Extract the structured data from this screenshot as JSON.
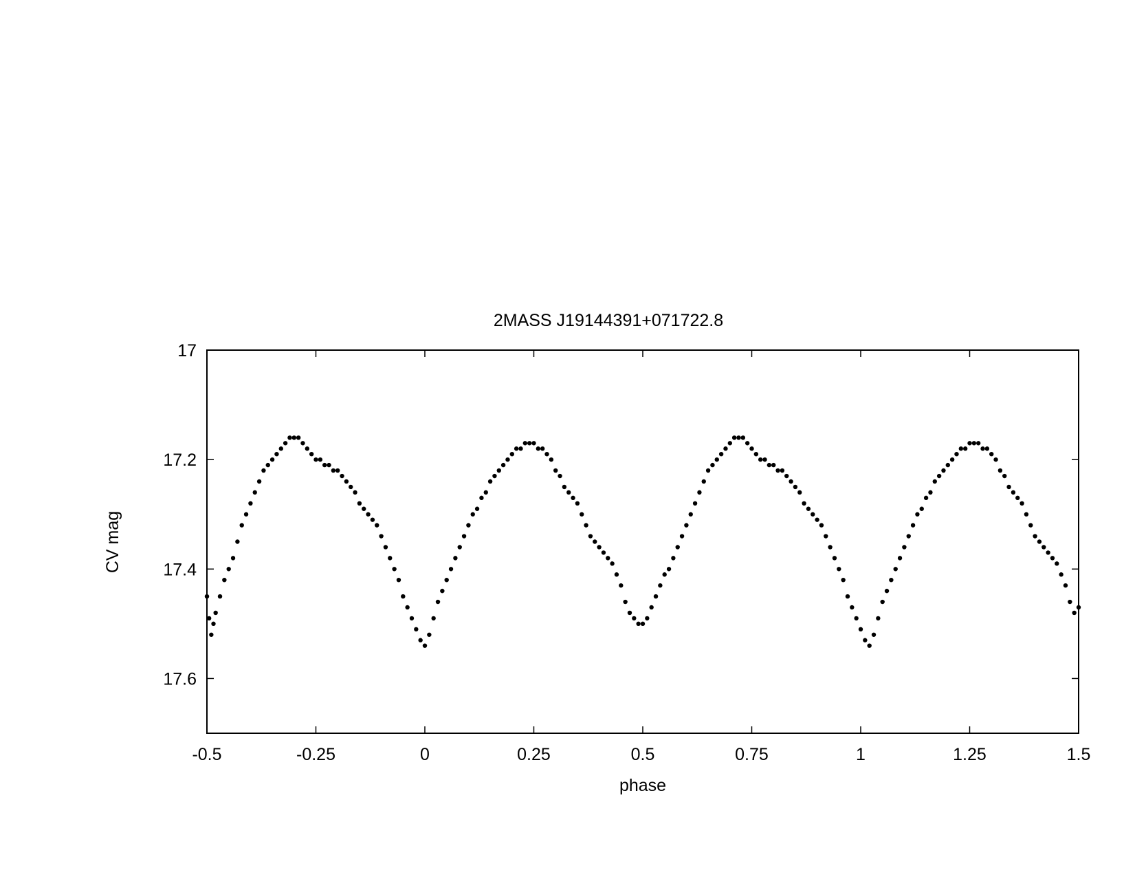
{
  "chart_data": {
    "type": "scatter",
    "title": "2MASS J19144391+071722.8",
    "xlabel": "phase",
    "ylabel": "CV mag",
    "xlim": [
      -0.5,
      1.5
    ],
    "ylim": [
      17.7,
      17.0
    ],
    "y_inverted": true,
    "grid": false,
    "legend": "none",
    "xticks": [
      -0.5,
      -0.25,
      0,
      0.25,
      0.5,
      0.75,
      1,
      1.25,
      1.5
    ],
    "xtick_labels": [
      "-0.5",
      "-0.25",
      "0",
      "0.25",
      "0.5",
      "0.75",
      "1",
      "1.25",
      "1.5"
    ],
    "yticks": [
      17.0,
      17.2,
      17.4,
      17.6
    ],
    "ytick_labels": [
      "17",
      "17.2",
      "17.4",
      "17.6"
    ],
    "marker_color": "#000000",
    "series": [
      {
        "x": [
          -0.5,
          -0.495,
          -0.49,
          -0.485,
          -0.48,
          -0.47,
          -0.46,
          -0.45,
          -0.44,
          -0.43,
          -0.42,
          -0.41,
          -0.4,
          -0.39,
          -0.38,
          -0.37,
          -0.36,
          -0.35,
          -0.34,
          -0.33,
          -0.32,
          -0.31,
          -0.3,
          -0.29,
          -0.28,
          -0.27,
          -0.26,
          -0.25,
          -0.24,
          -0.23,
          -0.22,
          -0.21,
          -0.2,
          -0.19,
          -0.18,
          -0.17,
          -0.16,
          -0.15,
          -0.14,
          -0.13,
          -0.12,
          -0.11,
          -0.1,
          -0.09,
          -0.08,
          -0.07,
          -0.06,
          -0.05,
          -0.04,
          -0.03,
          -0.02,
          -0.01,
          0,
          0.01,
          0.02,
          0.03,
          0.04,
          0.05,
          0.06,
          0.07,
          0.08,
          0.09,
          0.1,
          0.11,
          0.12,
          0.13,
          0.14,
          0.15,
          0.16,
          0.17,
          0.18,
          0.19,
          0.2,
          0.21,
          0.22,
          0.23,
          0.24,
          0.25,
          0.26,
          0.27,
          0.28,
          0.29,
          0.3,
          0.31,
          0.32,
          0.33,
          0.34,
          0.35,
          0.36,
          0.37,
          0.38,
          0.39,
          0.4,
          0.41,
          0.42,
          0.43,
          0.44,
          0.45,
          0.46,
          0.47,
          0.48,
          0.49,
          0.5,
          0.51,
          0.52,
          0.53,
          0.54,
          0.55,
          0.56,
          0.57,
          0.58,
          0.59,
          0.6,
          0.61,
          0.62,
          0.63,
          0.64,
          0.65,
          0.66,
          0.67,
          0.68,
          0.69,
          0.7,
          0.71,
          0.72,
          0.73,
          0.74,
          0.75,
          0.76,
          0.77,
          0.78,
          0.79,
          0.8,
          0.81,
          0.82,
          0.83,
          0.84,
          0.85,
          0.86,
          0.87,
          0.88,
          0.89,
          0.9,
          0.91,
          0.92,
          0.93,
          0.94,
          0.95,
          0.96,
          0.97,
          0.98,
          0.99,
          1,
          1.01,
          1.02,
          1.03,
          1.04,
          1.05,
          1.06,
          1.07,
          1.08,
          1.09,
          1.1,
          1.11,
          1.12,
          1.13,
          1.14,
          1.15,
          1.16,
          1.17,
          1.18,
          1.19,
          1.2,
          1.21,
          1.22,
          1.23,
          1.24,
          1.25,
          1.26,
          1.27,
          1.28,
          1.29,
          1.3,
          1.31,
          1.32,
          1.33,
          1.34,
          1.35,
          1.36,
          1.37,
          1.38,
          1.39,
          1.4,
          1.41,
          1.42,
          1.43,
          1.44,
          1.45,
          1.46,
          1.47,
          1.48,
          1.49,
          1.5
        ],
        "y": [
          17.45,
          17.49,
          17.52,
          17.5,
          17.48,
          17.45,
          17.42,
          17.4,
          17.38,
          17.35,
          17.32,
          17.3,
          17.28,
          17.26,
          17.24,
          17.22,
          17.21,
          17.2,
          17.19,
          17.18,
          17.17,
          17.16,
          17.16,
          17.16,
          17.17,
          17.18,
          17.19,
          17.2,
          17.2,
          17.21,
          17.21,
          17.22,
          17.22,
          17.23,
          17.24,
          17.25,
          17.26,
          17.28,
          17.29,
          17.3,
          17.31,
          17.32,
          17.34,
          17.36,
          17.38,
          17.4,
          17.42,
          17.45,
          17.47,
          17.49,
          17.51,
          17.53,
          17.54,
          17.52,
          17.49,
          17.46,
          17.44,
          17.42,
          17.4,
          17.38,
          17.36,
          17.34,
          17.32,
          17.3,
          17.29,
          17.27,
          17.26,
          17.24,
          17.23,
          17.22,
          17.21,
          17.2,
          17.19,
          17.18,
          17.18,
          17.17,
          17.17,
          17.17,
          17.18,
          17.18,
          17.19,
          17.2,
          17.22,
          17.23,
          17.25,
          17.26,
          17.27,
          17.28,
          17.3,
          17.32,
          17.34,
          17.35,
          17.36,
          17.37,
          17.38,
          17.39,
          17.41,
          17.43,
          17.46,
          17.48,
          17.49,
          17.5,
          17.5,
          17.49,
          17.47,
          17.45,
          17.43,
          17.41,
          17.4,
          17.38,
          17.36,
          17.34,
          17.32,
          17.3,
          17.28,
          17.26,
          17.24,
          17.22,
          17.21,
          17.2,
          17.19,
          17.18,
          17.17,
          17.16,
          17.16,
          17.16,
          17.17,
          17.18,
          17.19,
          17.2,
          17.2,
          17.21,
          17.21,
          17.22,
          17.22,
          17.23,
          17.24,
          17.25,
          17.26,
          17.28,
          17.29,
          17.3,
          17.31,
          17.32,
          17.34,
          17.36,
          17.38,
          17.4,
          17.42,
          17.45,
          17.47,
          17.49,
          17.51,
          17.53,
          17.54,
          17.52,
          17.49,
          17.46,
          17.44,
          17.42,
          17.4,
          17.38,
          17.36,
          17.34,
          17.32,
          17.3,
          17.29,
          17.27,
          17.26,
          17.24,
          17.23,
          17.22,
          17.21,
          17.2,
          17.19,
          17.18,
          17.18,
          17.17,
          17.17,
          17.17,
          17.18,
          17.18,
          17.19,
          17.2,
          17.22,
          17.23,
          17.25,
          17.26,
          17.27,
          17.28,
          17.3,
          17.32,
          17.34,
          17.35,
          17.36,
          17.37,
          17.38,
          17.39,
          17.41,
          17.43,
          17.46,
          17.48,
          17.47
        ]
      }
    ]
  }
}
